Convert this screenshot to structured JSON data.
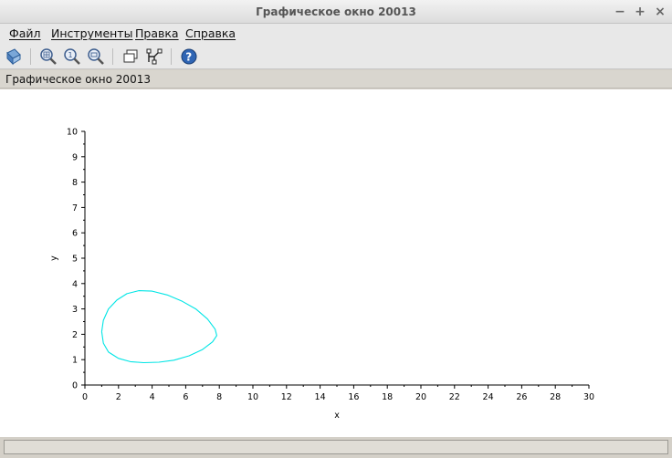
{
  "window": {
    "title": "Графическое окно 20013",
    "controls": {
      "minimize": "−",
      "maximize": "+",
      "close": "×"
    }
  },
  "menu": {
    "items": [
      "Файл",
      "Инструменты",
      "Правка",
      "Справка"
    ]
  },
  "toolbar": {
    "icons": [
      "rotate-icon",
      "zoom-area-icon",
      "zoom-reset-icon",
      "zoom-icon",
      "datatip-icon",
      "editor-icon",
      "help-icon"
    ]
  },
  "figure_label": "Графическое окно 20013",
  "colors": {
    "curve": "#00e5e5",
    "axis": "#000000"
  },
  "chart_data": {
    "type": "line",
    "xlabel": "x",
    "ylabel": "y",
    "xlim": [
      0,
      30
    ],
    "ylim": [
      0,
      10
    ],
    "x_ticks": [
      "0",
      "2",
      "4",
      "6",
      "8",
      "10",
      "12",
      "14",
      "16",
      "18",
      "20",
      "22",
      "24",
      "26",
      "28",
      "30"
    ],
    "y_ticks": [
      "0",
      "1",
      "2",
      "3",
      "4",
      "5",
      "6",
      "7",
      "8",
      "9",
      "10"
    ],
    "grid": false,
    "series": [
      {
        "color": "#00e5e5",
        "x": [
          1.0,
          1.1,
          1.4,
          1.9,
          2.5,
          3.2,
          4.0,
          4.9,
          5.8,
          6.6,
          7.3,
          7.75,
          7.85,
          7.6,
          7.0,
          6.2,
          5.3,
          4.4,
          3.5,
          2.7,
          2.0,
          1.4,
          1.1,
          1.0
        ],
        "y": [
          2.1,
          2.55,
          3.0,
          3.35,
          3.6,
          3.72,
          3.7,
          3.55,
          3.3,
          3.0,
          2.6,
          2.2,
          1.95,
          1.7,
          1.4,
          1.15,
          0.98,
          0.9,
          0.88,
          0.92,
          1.05,
          1.3,
          1.65,
          2.1
        ]
      }
    ]
  }
}
